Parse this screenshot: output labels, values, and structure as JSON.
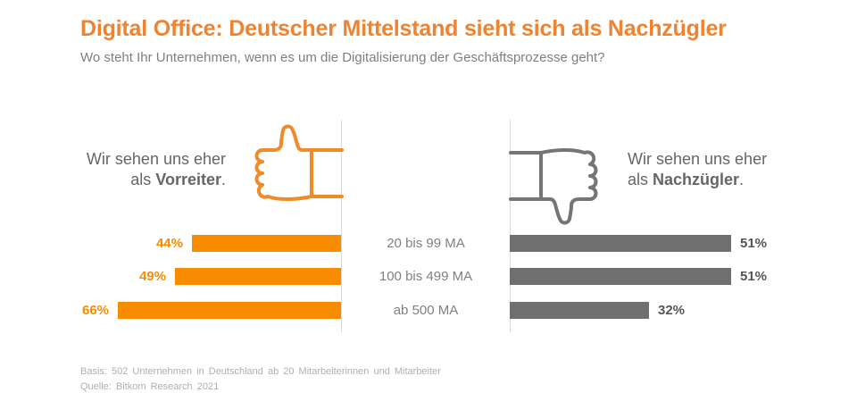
{
  "title": "Digital Office: Deutscher Mittelstand sieht sich als Nachzügler",
  "subtitle": "Wo steht Ihr Unternehmen, wenn es um die Digitalisierung der Geschäftsprozesse geht?",
  "left_panel": {
    "line1": "Wir sehen uns eher",
    "line2_prefix": "als ",
    "keyword": "Vorreiter",
    "line2_suffix": ".",
    "icon": "thumbs-up-icon"
  },
  "right_panel": {
    "line1": "Wir sehen uns eher",
    "line2_prefix": "als ",
    "keyword": "Nachzügler",
    "line2_suffix": ".",
    "icon": "thumbs-down-icon"
  },
  "chart_data": {
    "type": "bar",
    "orientation": "horizontal",
    "layout": "two-sided-diverging",
    "categories": [
      "20 bis 99 MA",
      "100 bis 499 MA",
      "ab 500 MA"
    ],
    "series": [
      {
        "name": "Wir sehen uns eher als Vorreiter.",
        "side": "left",
        "color": "#F78C00",
        "values": [
          44,
          49,
          66
        ]
      },
      {
        "name": "Wir sehen uns eher als Nachzügler.",
        "side": "right",
        "color": "#6F6F6F",
        "values": [
          51,
          51,
          32
        ]
      }
    ],
    "unit": "%",
    "value_labels": true,
    "axis": "none",
    "grid": false,
    "legend_position": "none"
  },
  "footer": {
    "basis": "Basis: 502 Unternehmen in Deutschland ab 20 Mitarbeiterinnen und Mitarbeiter",
    "quelle": "Quelle: Bitkom Research 2021"
  },
  "colors": {
    "title_orange": "#EE8331",
    "bar_orange": "#F78C00",
    "icon_orange": "#F08C28",
    "bar_gray": "#6F6F6F",
    "icon_gray": "#757575",
    "value_gray": "#555555",
    "label_gray": "#808080",
    "side_text_gray": "#666666",
    "divider_gray": "#D9D9D9",
    "footer_gray": "#AFAFAF",
    "background": "#FFFFFF"
  }
}
